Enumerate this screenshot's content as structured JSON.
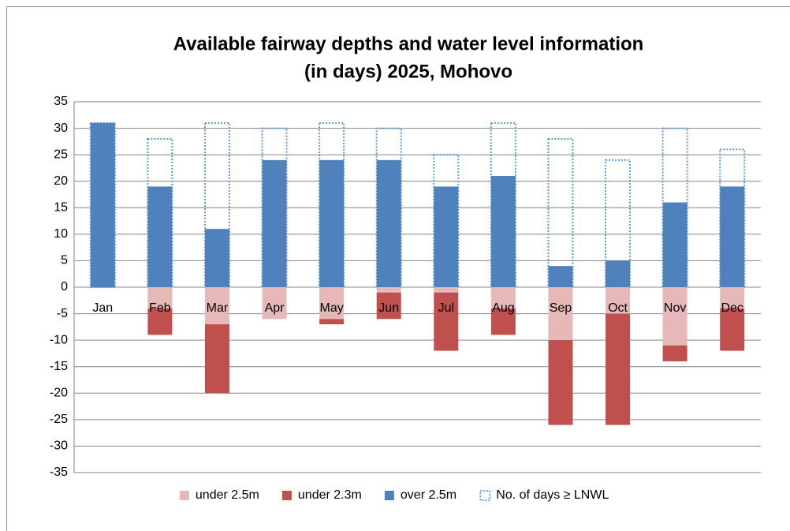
{
  "chart_data": {
    "type": "bar",
    "title": [
      "Available fairway depths and water level information",
      "(in days) 2025, Mohovo"
    ],
    "categories": [
      "Jan",
      "Feb",
      "Mar",
      "Apr",
      "May",
      "Jun",
      "Jul",
      "Aug",
      "Sep",
      "Oct",
      "Nov",
      "Dec"
    ],
    "series": [
      {
        "name": "under 2.5m",
        "color": "#e6b9b8",
        "values": [
          0,
          -4,
          -7,
          -6,
          -6,
          -1,
          -1,
          -4,
          -10,
          -5,
          -11,
          -4
        ]
      },
      {
        "name": "under 2.3m",
        "color": "#c0504d",
        "values": [
          0,
          -5,
          -13,
          0,
          -1,
          -5,
          -11,
          -5,
          -16,
          -21,
          -3,
          -8
        ]
      },
      {
        "name": "over 2.5m",
        "color": "#4f81bd",
        "values": [
          31,
          19,
          11,
          24,
          24,
          24,
          19,
          21,
          4,
          5,
          16,
          19
        ]
      },
      {
        "name": "No. of days ≥ LNWL",
        "color": "#5b9bd5",
        "style": "dotted",
        "values": [
          31,
          28,
          31,
          30,
          31,
          30,
          25,
          31,
          28,
          24,
          30,
          26
        ]
      }
    ],
    "ylim": [
      -35,
      35
    ],
    "yticks": [
      -35,
      -30,
      -25,
      -20,
      -15,
      -10,
      -5,
      0,
      5,
      10,
      15,
      20,
      25,
      30,
      35
    ],
    "grid": true,
    "legend": "bottom"
  }
}
